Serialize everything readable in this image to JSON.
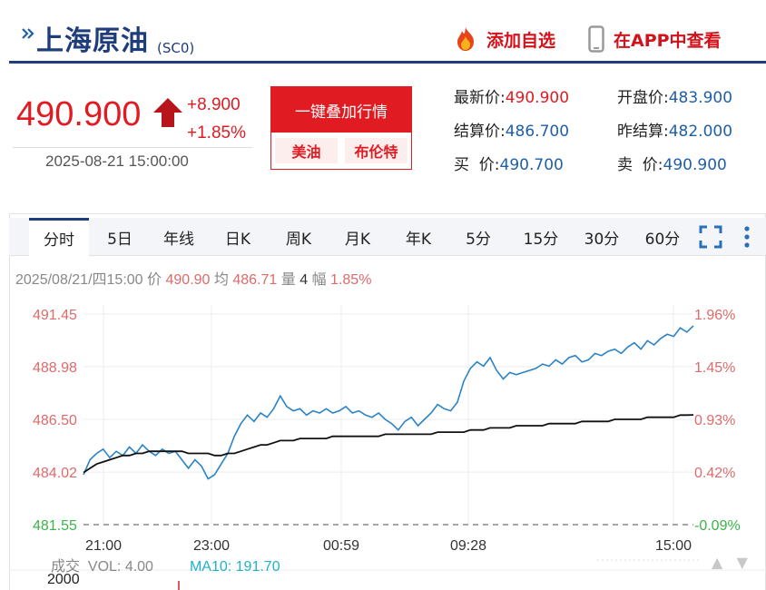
{
  "header": {
    "title": "上海原油",
    "code": "(SC0)",
    "add_watch_label": "添加自选",
    "app_view_label": "在APP中查看"
  },
  "price": {
    "current": "490.900",
    "change": "+8.900",
    "change_pct": "+1.85%",
    "timestamp": "2025-08-21 15:00:00"
  },
  "overlay": {
    "title": "一键叠加行情",
    "options": [
      "美油",
      "布伦特"
    ]
  },
  "quote": {
    "latest_label": "最新价:",
    "latest_value": "490.900",
    "open_label": "开盘价:",
    "open_value": "483.900",
    "settle_label": "结算价:",
    "settle_value": "486.700",
    "prev_settle_label": "昨结算:",
    "prev_settle_value": "482.000",
    "bid_label": "买  价:",
    "bid_value": "490.700",
    "ask_label": "卖  价:",
    "ask_value": "490.900"
  },
  "tabs": [
    {
      "label": "分时",
      "active": true
    },
    {
      "label": "5日",
      "active": false
    },
    {
      "label": "年线",
      "active": false
    },
    {
      "label": "日K",
      "active": false
    },
    {
      "label": "周K",
      "active": false
    },
    {
      "label": "月K",
      "active": false
    },
    {
      "label": "年K",
      "active": false
    },
    {
      "label": "5分",
      "active": false
    },
    {
      "label": "15分",
      "active": false
    },
    {
      "label": "30分",
      "active": false
    },
    {
      "label": "60分",
      "active": false
    }
  ],
  "tab_tools": [
    "fullscreen-icon",
    "more-vertical-icon"
  ],
  "info": {
    "date_time": "2025/08/21/四15:00",
    "price_label": "价",
    "price_value": "490.90",
    "avg_label": "均",
    "avg_value": "486.71",
    "vol_label": "量",
    "vol_value": "4",
    "amp_label": "幅",
    "amp_value": "1.85%"
  },
  "volume": {
    "title": "成交",
    "vol_text": "VOL: 4.00",
    "ma_text": "MA10: 191.70",
    "axis_top": "2000"
  },
  "colors": {
    "brand_navy": "#1f3d7a",
    "up_red": "#e11b22",
    "price_line": "#2b83c6",
    "avg_line": "#111111",
    "down_green": "#3cb34a"
  },
  "chart_data": {
    "type": "line",
    "x_ticks": [
      "21:00",
      "23:00",
      "00:59",
      "09:28",
      "15:00"
    ],
    "y_left_ticks": [
      "491.45",
      "488.98",
      "486.50",
      "484.02",
      "481.55"
    ],
    "y_right_ticks": [
      "1.96%",
      "1.45%",
      "0.93%",
      "0.42%",
      "-0.09%"
    ],
    "ylim": [
      481.55,
      491.45
    ],
    "reference_price": 482.0,
    "series": [
      {
        "name": "价",
        "values": [
          483.9,
          484.6,
          484.9,
          485.1,
          484.7,
          485.0,
          484.8,
          485.2,
          484.9,
          485.3,
          485.0,
          484.8,
          485.1,
          484.9,
          485.0,
          484.6,
          484.2,
          484.6,
          484.3,
          483.7,
          483.9,
          484.4,
          484.9,
          485.7,
          486.3,
          486.7,
          486.4,
          486.8,
          486.6,
          487.0,
          487.6,
          487.1,
          486.9,
          487.0,
          486.7,
          486.9,
          486.8,
          487.0,
          486.8,
          486.9,
          487.1,
          486.8,
          486.9,
          486.7,
          486.6,
          486.8,
          486.5,
          486.3,
          486.0,
          486.4,
          486.6,
          486.2,
          486.5,
          486.8,
          487.2,
          487.0,
          486.9,
          487.3,
          488.3,
          488.9,
          489.2,
          489.0,
          489.4,
          488.8,
          488.4,
          488.7,
          488.6,
          488.7,
          488.8,
          488.9,
          489.1,
          489.0,
          489.3,
          489.1,
          489.4,
          489.5,
          489.2,
          489.3,
          489.6,
          489.5,
          489.7,
          489.8,
          489.6,
          489.9,
          490.1,
          489.8,
          490.2,
          490.0,
          490.3,
          490.5,
          490.4,
          490.8,
          490.6,
          490.9
        ]
      },
      {
        "name": "均",
        "values": [
          484.0,
          484.2,
          484.4,
          484.5,
          484.6,
          484.7,
          484.8,
          484.8,
          484.9,
          484.9,
          485.0,
          485.0,
          485.0,
          485.0,
          485.0,
          485.0,
          484.9,
          484.9,
          484.9,
          484.9,
          484.8,
          484.8,
          484.9,
          484.9,
          485.0,
          485.1,
          485.2,
          485.3,
          485.3,
          485.4,
          485.5,
          485.5,
          485.5,
          485.6,
          485.6,
          485.6,
          485.6,
          485.6,
          485.7,
          485.7,
          485.7,
          485.7,
          485.7,
          485.7,
          485.7,
          485.7,
          485.8,
          485.8,
          485.8,
          485.8,
          485.8,
          485.8,
          485.8,
          485.8,
          485.9,
          485.9,
          485.9,
          485.9,
          485.9,
          486.0,
          486.0,
          486.0,
          486.1,
          486.1,
          486.1,
          486.1,
          486.2,
          486.2,
          486.2,
          486.2,
          486.2,
          486.3,
          486.3,
          486.3,
          486.3,
          486.3,
          486.4,
          486.4,
          486.4,
          486.4,
          486.4,
          486.5,
          486.5,
          486.5,
          486.5,
          486.5,
          486.6,
          486.6,
          486.6,
          486.6,
          486.6,
          486.7,
          486.7,
          486.71
        ]
      }
    ]
  }
}
